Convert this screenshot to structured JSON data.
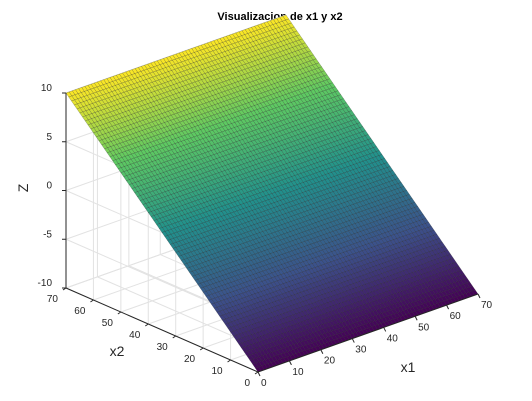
{
  "chart_data": {
    "type": "surface",
    "title": "Visualizacion de x1 y x2",
    "xlabel": "x1",
    "ylabel": "x2",
    "zlabel": "Z",
    "xlim": [
      0,
      70
    ],
    "ylim": [
      0,
      70
    ],
    "zlim": [
      -10,
      10
    ],
    "x_ticks": [
      "0",
      "10",
      "20",
      "30",
      "40",
      "50",
      "60",
      "70"
    ],
    "y_ticks": [
      "0",
      "10",
      "20",
      "30",
      "40",
      "50",
      "60",
      "70"
    ],
    "z_ticks": [
      "-10",
      "-5",
      "0",
      "5",
      "10"
    ],
    "x_range": [
      0,
      70
    ],
    "y_range": [
      0,
      70
    ],
    "z_at_corners": {
      "x1_0_x2_0": -10,
      "x1_70_x2_0": -10,
      "x1_0_x2_70": 10,
      "x1_70_x2_70": 10
    },
    "colormap": [
      "#440154",
      "#3b528b",
      "#21918c",
      "#5ec962",
      "#fde725"
    ],
    "grid": true
  }
}
